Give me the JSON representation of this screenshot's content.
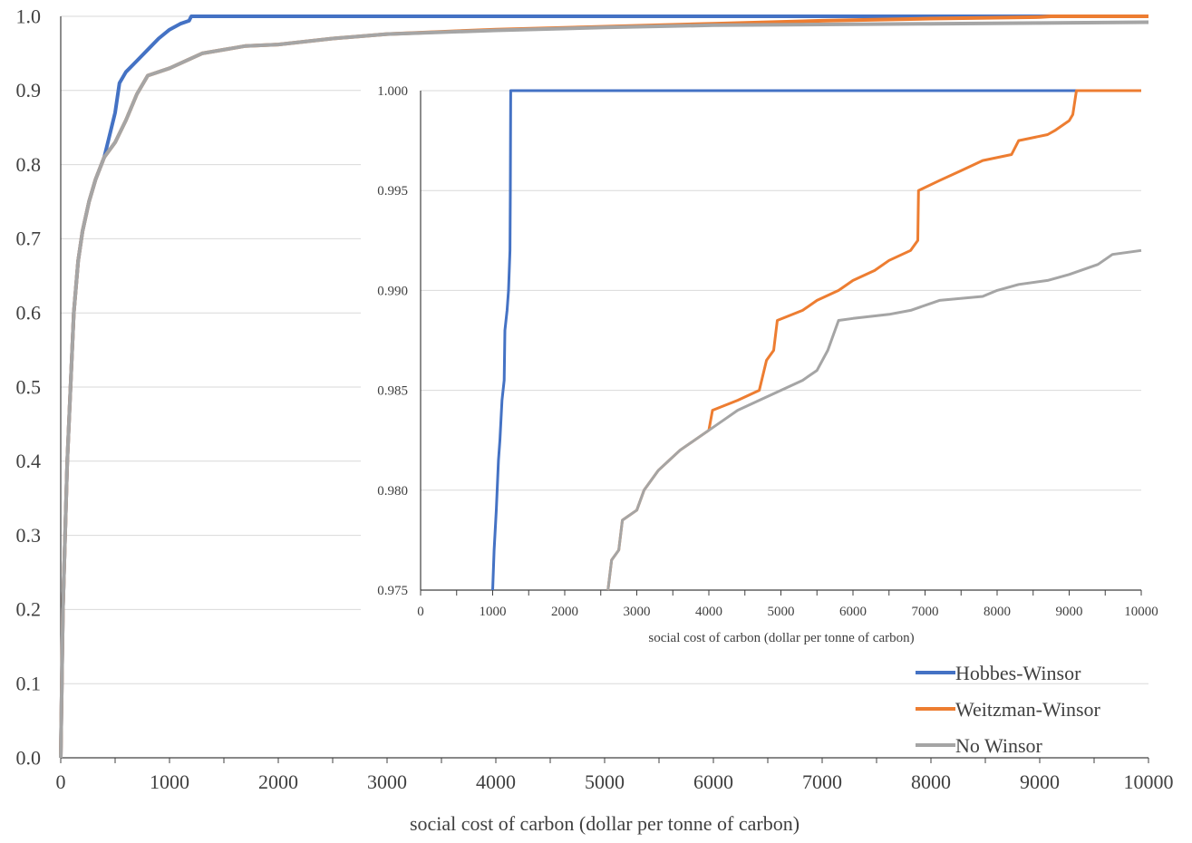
{
  "chart_data": [
    {
      "id": "main",
      "type": "line",
      "title": "",
      "xlabel": "social cost of carbon (dollar per tonne of carbon)",
      "ylabel": "",
      "xlim": [
        0,
        10000
      ],
      "ylim": [
        0,
        1.0
      ],
      "x_ticks": [
        "0",
        "1000",
        "2000",
        "3000",
        "4000",
        "5000",
        "6000",
        "7000",
        "8000",
        "9000",
        "10000"
      ],
      "y_ticks": [
        "0.0",
        "0.1",
        "0.2",
        "0.3",
        "0.4",
        "0.5",
        "0.6",
        "0.7",
        "0.8",
        "0.9",
        "1.0"
      ],
      "grid": "horizontal",
      "legend_position": "bottom-right",
      "series": [
        {
          "name": "Hobbes-Winsor",
          "color": "#4472c4",
          "points": [
            [
              0,
              0
            ],
            [
              10,
              0.1
            ],
            [
              20,
              0.2
            ],
            [
              40,
              0.3
            ],
            [
              60,
              0.4
            ],
            [
              90,
              0.5
            ],
            [
              120,
              0.6
            ],
            [
              160,
              0.67
            ],
            [
              200,
              0.71
            ],
            [
              260,
              0.75
            ],
            [
              320,
              0.78
            ],
            [
              400,
              0.81
            ],
            [
              450,
              0.84
            ],
            [
              500,
              0.87
            ],
            [
              540,
              0.91
            ],
            [
              600,
              0.925
            ],
            [
              700,
              0.94
            ],
            [
              800,
              0.955
            ],
            [
              900,
              0.97
            ],
            [
              1000,
              0.982
            ],
            [
              1100,
              0.99
            ],
            [
              1180,
              0.994
            ],
            [
              1200,
              1.0
            ],
            [
              10000,
              1.0
            ]
          ]
        },
        {
          "name": "Weitzman-Winsor",
          "color": "#ed7d31",
          "points": [
            [
              0,
              0
            ],
            [
              10,
              0.1
            ],
            [
              20,
              0.2
            ],
            [
              40,
              0.3
            ],
            [
              60,
              0.4
            ],
            [
              90,
              0.5
            ],
            [
              120,
              0.6
            ],
            [
              160,
              0.67
            ],
            [
              200,
              0.71
            ],
            [
              260,
              0.75
            ],
            [
              320,
              0.78
            ],
            [
              400,
              0.81
            ],
            [
              500,
              0.83
            ],
            [
              600,
              0.86
            ],
            [
              700,
              0.895
            ],
            [
              800,
              0.92
            ],
            [
              1000,
              0.93
            ],
            [
              1300,
              0.95
            ],
            [
              1700,
              0.96
            ],
            [
              2000,
              0.962
            ],
            [
              2500,
              0.97
            ],
            [
              3000,
              0.976
            ],
            [
              4000,
              0.982
            ],
            [
              5000,
              0.986
            ],
            [
              6000,
              0.99
            ],
            [
              7000,
              0.994
            ],
            [
              8000,
              0.997
            ],
            [
              9000,
              0.999
            ],
            [
              9100,
              1.0
            ],
            [
              10000,
              1.0
            ]
          ]
        },
        {
          "name": "No Winsor",
          "color": "#a5a5a5",
          "points": [
            [
              0,
              0
            ],
            [
              10,
              0.1
            ],
            [
              20,
              0.2
            ],
            [
              40,
              0.3
            ],
            [
              60,
              0.4
            ],
            [
              90,
              0.5
            ],
            [
              120,
              0.6
            ],
            [
              160,
              0.67
            ],
            [
              200,
              0.71
            ],
            [
              260,
              0.75
            ],
            [
              320,
              0.78
            ],
            [
              400,
              0.81
            ],
            [
              500,
              0.83
            ],
            [
              600,
              0.86
            ],
            [
              700,
              0.895
            ],
            [
              800,
              0.92
            ],
            [
              1000,
              0.93
            ],
            [
              1300,
              0.95
            ],
            [
              1700,
              0.96
            ],
            [
              2000,
              0.962
            ],
            [
              2500,
              0.97
            ],
            [
              3000,
              0.976
            ],
            [
              4000,
              0.981
            ],
            [
              5000,
              0.985
            ],
            [
              6000,
              0.988
            ],
            [
              7000,
              0.989
            ],
            [
              8000,
              0.99
            ],
            [
              9000,
              0.991
            ],
            [
              10000,
              0.992
            ]
          ]
        }
      ]
    },
    {
      "id": "inset",
      "type": "line",
      "title": "",
      "xlabel": "social cost of carbon (dollar per tonne of carbon)",
      "ylabel": "",
      "xlim": [
        0,
        10000
      ],
      "ylim": [
        0.975,
        1.0
      ],
      "x_ticks": [
        "0",
        "1000",
        "2000",
        "3000",
        "4000",
        "5000",
        "6000",
        "7000",
        "8000",
        "9000",
        "10000"
      ],
      "y_ticks": [
        "0.975",
        "0.980",
        "0.985",
        "0.990",
        "0.995",
        "1.000"
      ],
      "grid": "horizontal",
      "legend_position": "none",
      "series": [
        {
          "name": "Hobbes-Winsor",
          "color": "#4472c4",
          "points": [
            [
              1000,
              0.975
            ],
            [
              1020,
              0.977
            ],
            [
              1050,
              0.979
            ],
            [
              1080,
              0.9815
            ],
            [
              1100,
              0.9825
            ],
            [
              1130,
              0.9845
            ],
            [
              1160,
              0.9855
            ],
            [
              1170,
              0.988
            ],
            [
              1200,
              0.989
            ],
            [
              1220,
              0.99
            ],
            [
              1240,
              0.992
            ],
            [
              1245,
              0.995
            ],
            [
              1250,
              1.0
            ],
            [
              10000,
              1.0
            ]
          ]
        },
        {
          "name": "Weitzman-Winsor",
          "color": "#ed7d31",
          "points": [
            [
              2600,
              0.975
            ],
            [
              2650,
              0.9765
            ],
            [
              2750,
              0.977
            ],
            [
              2800,
              0.9785
            ],
            [
              3000,
              0.979
            ],
            [
              3100,
              0.98
            ],
            [
              3300,
              0.981
            ],
            [
              3600,
              0.982
            ],
            [
              3800,
              0.9825
            ],
            [
              4000,
              0.983
            ],
            [
              4050,
              0.984
            ],
            [
              4400,
              0.9845
            ],
            [
              4700,
              0.985
            ],
            [
              4800,
              0.9865
            ],
            [
              4900,
              0.987
            ],
            [
              4950,
              0.9885
            ],
            [
              5300,
              0.989
            ],
            [
              5500,
              0.9895
            ],
            [
              5800,
              0.99
            ],
            [
              6000,
              0.9905
            ],
            [
              6300,
              0.991
            ],
            [
              6500,
              0.9915
            ],
            [
              6800,
              0.992
            ],
            [
              6900,
              0.9925
            ],
            [
              6910,
              0.995
            ],
            [
              7200,
              0.9955
            ],
            [
              7500,
              0.996
            ],
            [
              7800,
              0.9965
            ],
            [
              8200,
              0.9968
            ],
            [
              8300,
              0.9975
            ],
            [
              8700,
              0.9978
            ],
            [
              8800,
              0.998
            ],
            [
              9000,
              0.9985
            ],
            [
              9050,
              0.9988
            ],
            [
              9100,
              1.0
            ],
            [
              10000,
              1.0
            ]
          ]
        },
        {
          "name": "No Winsor",
          "color": "#a5a5a5",
          "points": [
            [
              2600,
              0.975
            ],
            [
              2650,
              0.9765
            ],
            [
              2750,
              0.977
            ],
            [
              2800,
              0.9785
            ],
            [
              3000,
              0.979
            ],
            [
              3100,
              0.98
            ],
            [
              3300,
              0.981
            ],
            [
              3600,
              0.982
            ],
            [
              3800,
              0.9825
            ],
            [
              4000,
              0.983
            ],
            [
              4200,
              0.9835
            ],
            [
              4400,
              0.984
            ],
            [
              4700,
              0.9845
            ],
            [
              5000,
              0.985
            ],
            [
              5300,
              0.9855
            ],
            [
              5500,
              0.986
            ],
            [
              5650,
              0.987
            ],
            [
              5800,
              0.9885
            ],
            [
              6000,
              0.9886
            ],
            [
              6500,
              0.9888
            ],
            [
              6800,
              0.989
            ],
            [
              7200,
              0.9895
            ],
            [
              7800,
              0.9897
            ],
            [
              8000,
              0.99
            ],
            [
              8300,
              0.9903
            ],
            [
              8700,
              0.9905
            ],
            [
              9000,
              0.9908
            ],
            [
              9400,
              0.9913
            ],
            [
              9600,
              0.9918
            ],
            [
              10000,
              0.992
            ]
          ]
        }
      ]
    }
  ]
}
